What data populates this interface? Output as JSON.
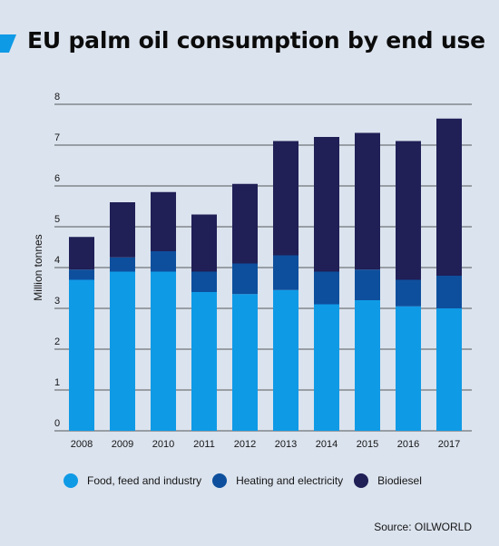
{
  "header": {
    "title": "EU palm oil consumption by end use"
  },
  "source": "Source: OILWORLD",
  "chart_data": {
    "type": "bar",
    "stacked": true,
    "categories": [
      "2008",
      "2009",
      "2010",
      "2011",
      "2012",
      "2013",
      "2014",
      "2015",
      "2016",
      "2017"
    ],
    "series": [
      {
        "name": "Food, feed and industry",
        "color": "#0f9ae6",
        "values": [
          3.7,
          3.9,
          3.9,
          3.4,
          3.35,
          3.45,
          3.1,
          3.2,
          3.05,
          3.0
        ]
      },
      {
        "name": "Heating and electricity",
        "color": "#0d4f9d",
        "values": [
          0.25,
          0.35,
          0.5,
          0.5,
          0.75,
          0.85,
          0.8,
          0.75,
          0.65,
          0.8
        ]
      },
      {
        "name": "Biodiesel",
        "color": "#201f56",
        "values": [
          0.8,
          1.35,
          1.45,
          1.4,
          1.95,
          2.8,
          3.3,
          3.35,
          3.4,
          3.85
        ]
      }
    ],
    "ylabel": "Million tonnes",
    "xlabel": "",
    "ylim": [
      0,
      8
    ],
    "yticks": [
      0,
      1,
      2,
      3,
      4,
      5,
      6,
      7,
      8
    ],
    "grid": true,
    "legend_position": "bottom"
  }
}
